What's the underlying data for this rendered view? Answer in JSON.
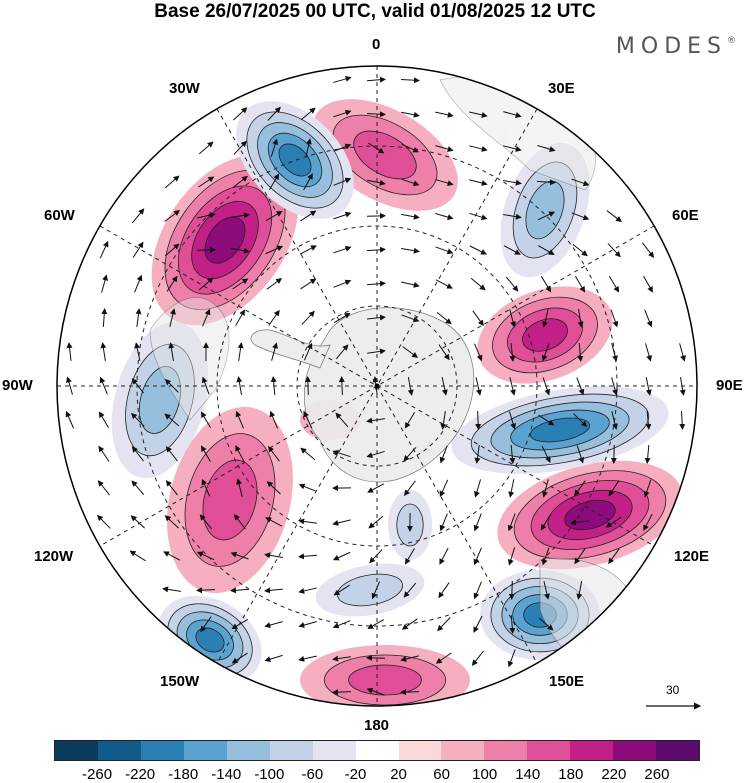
{
  "title": "Base 26/07/2025 00 UTC, valid 01/08/2025 12 UTC",
  "brand": {
    "text": "MODES",
    "mark": "®"
  },
  "longitude_labels": {
    "lon_0": "0",
    "lon_30e": "30E",
    "lon_60e": "60E",
    "lon_90e": "90E",
    "lon_120e": "120E",
    "lon_150e": "150E",
    "lon_180": "180",
    "lon_150w": "150W",
    "lon_120w": "120W",
    "lon_90w": "90W",
    "lon_60w": "60W",
    "lon_30w": "30W"
  },
  "vector_reference": {
    "value": "30"
  },
  "colorbar": {
    "colors": [
      "#0b3b5c",
      "#115b8a",
      "#2a7fb5",
      "#5aa2cf",
      "#95bfdd",
      "#c3d2e6",
      "#e3e3f1",
      "#ffffff",
      "#fbd8da",
      "#f5afc0",
      "#ee7fa8",
      "#df4e96",
      "#c21f87",
      "#8e0b7b",
      "#5a0a6b"
    ],
    "ticks": [
      "-260",
      "-220",
      "-180",
      "-140",
      "-100",
      "-60",
      "-20",
      "20",
      "60",
      "100",
      "140",
      "180",
      "220",
      "260"
    ]
  }
}
